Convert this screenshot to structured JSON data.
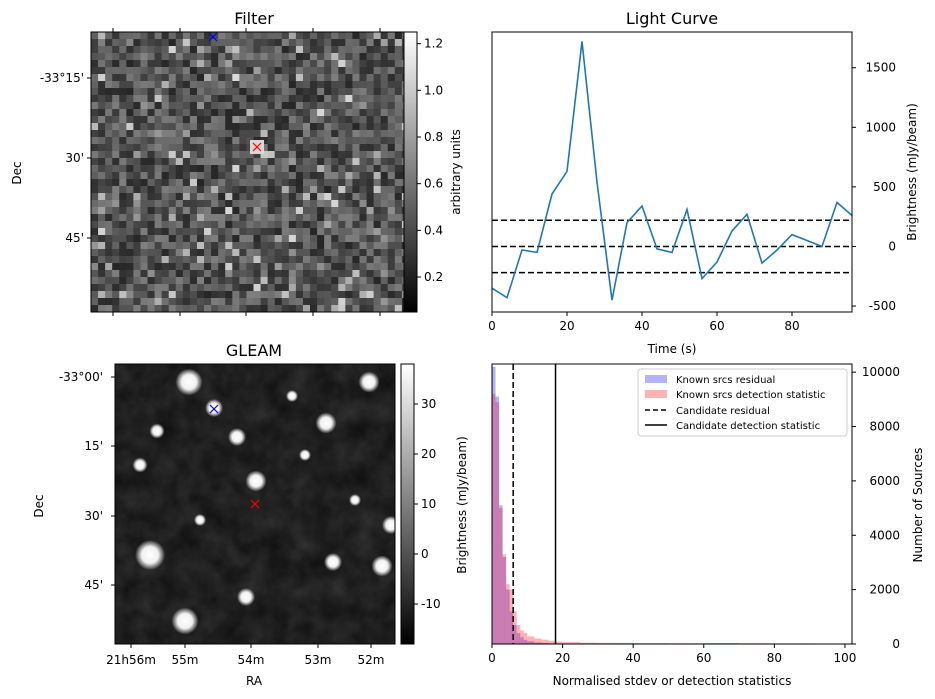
{
  "chart_data": [
    {
      "type": "heatmap",
      "title": "Filter",
      "xlabel": "",
      "ylabel": "Dec",
      "y_ticks": [
        "-33°15'",
        "30'",
        "45'"
      ],
      "colorbar": {
        "label": "arbitrary units",
        "ticks": [
          "1.2",
          "1.0",
          "0.8",
          "0.6",
          "0.4",
          "0.2"
        ],
        "range": [
          0.05,
          1.25
        ],
        "cmap": "gray"
      },
      "markers": [
        {
          "label": "candidate",
          "color": "#ff0000",
          "symbol": "x"
        },
        {
          "label": "reference",
          "color": "#0000ff",
          "symbol": "x"
        }
      ]
    },
    {
      "type": "line",
      "title": "Light Curve",
      "xlabel": "Time (s)",
      "ylabel": "Brightness (mJy/beam)",
      "xlim": [
        0,
        96
      ],
      "ylim": [
        -550,
        1800
      ],
      "x_ticks": [
        "0",
        "20",
        "40",
        "60",
        "80"
      ],
      "y_ticks": [
        "-500",
        "0",
        "500",
        "1000",
        "1500"
      ],
      "x": [
        0,
        4,
        8,
        12,
        16,
        20,
        24,
        28,
        32,
        36,
        40,
        44,
        48,
        52,
        56,
        60,
        64,
        68,
        72,
        76,
        80,
        84,
        88,
        92,
        96
      ],
      "values": [
        -350,
        -430,
        -30,
        -50,
        440,
        630,
        1720,
        540,
        -450,
        200,
        340,
        -20,
        -50,
        310,
        -270,
        -130,
        130,
        270,
        -140,
        -30,
        100,
        50,
        0,
        370,
        260
      ],
      "series_color": "#1f77b4",
      "hlines": [
        {
          "y": 220,
          "style": "dashed"
        },
        {
          "y": 0,
          "style": "dashed"
        },
        {
          "y": -220,
          "style": "dashed"
        }
      ]
    },
    {
      "type": "heatmap",
      "title": "GLEAM",
      "xlabel": "RA",
      "ylabel": "Dec",
      "x_ticks": [
        "21h56m",
        "55m",
        "54m",
        "53m",
        "52m"
      ],
      "y_ticks": [
        "-33°00'",
        "15'",
        "30'",
        "45'"
      ],
      "colorbar": {
        "label": "Brightness (mJy/beam)",
        "ticks": [
          "30",
          "20",
          "10",
          "0",
          "-10"
        ],
        "range": [
          -18,
          38
        ],
        "cmap": "gray"
      },
      "markers": [
        {
          "label": "candidate",
          "color": "#ff0000",
          "symbol": "x"
        },
        {
          "label": "reference",
          "color": "#0000ff",
          "symbol": "x"
        }
      ]
    },
    {
      "type": "bar",
      "subtype": "histogram",
      "title": "",
      "xlabel": "Normalised stdev or detection statistics",
      "ylabel": "Number of Sources",
      "xlim": [
        0,
        102
      ],
      "ylim": [
        0,
        10300
      ],
      "x_ticks": [
        "0",
        "20",
        "40",
        "60",
        "80",
        "100"
      ],
      "y_ticks": [
        "0",
        "2000",
        "4000",
        "6000",
        "8000",
        "10000"
      ],
      "bin_edges": [
        0,
        1,
        2,
        3,
        4,
        5,
        6,
        7,
        8,
        9,
        10,
        12,
        14,
        16,
        18,
        20,
        25,
        30,
        40,
        50,
        60,
        70,
        80,
        90,
        100
      ],
      "series": [
        {
          "name": "Known srcs residual",
          "color": "#0000ff",
          "values": [
            10200,
            9100,
            5100,
            3200,
            2000,
            1200,
            700,
            400,
            250,
            150,
            100,
            60,
            40,
            25,
            15,
            10,
            6,
            4,
            3,
            2,
            2,
            1,
            1,
            1
          ]
        },
        {
          "name": "Known srcs detection statistic",
          "color": "#ff0000",
          "values": [
            9200,
            8900,
            5000,
            3300,
            2200,
            2000,
            1200,
            700,
            500,
            400,
            280,
            200,
            160,
            120,
            90,
            70,
            50,
            40,
            30,
            25,
            35,
            25,
            20,
            15
          ]
        }
      ],
      "vlines": [
        {
          "name": "Candidate residual",
          "x": 6,
          "style": "dashed"
        },
        {
          "name": "Candidate detection statistic",
          "x": 18,
          "style": "solid"
        }
      ],
      "legend": {
        "position": "top-right"
      }
    }
  ]
}
